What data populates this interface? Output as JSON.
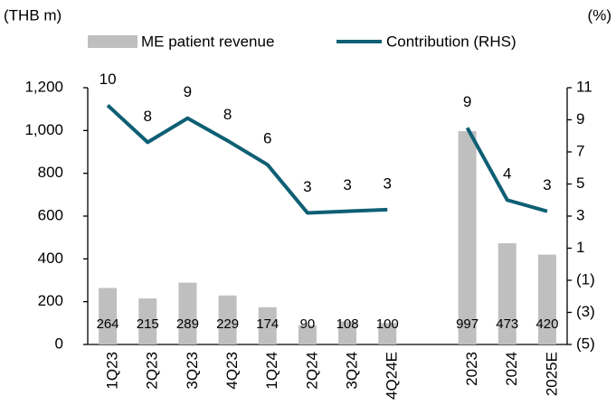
{
  "chart_data": {
    "type": "bar-line",
    "y_unit_label": "(THB m)",
    "y2_unit_label": "(%)",
    "categories": [
      "1Q23",
      "2Q23",
      "3Q23",
      "4Q23",
      "1Q24",
      "2Q24",
      "3Q24",
      "4Q24E",
      null,
      "2023",
      "2024",
      "2025E"
    ],
    "series": [
      {
        "name": "ME patient revenue",
        "type": "bar",
        "color": "#bfbfbf",
        "values": [
          264,
          215,
          289,
          229,
          174,
          90,
          108,
          100,
          null,
          997,
          473,
          420
        ]
      },
      {
        "name": "Contribution (RHS)",
        "type": "line",
        "axis": "y2",
        "color": "#0e5f74",
        "values": [
          9.9,
          7.6,
          9.1,
          7.7,
          6.2,
          3.2,
          3.3,
          3.4,
          null,
          8.5,
          4.0,
          3.3
        ],
        "value_labels": [
          "10",
          "8",
          "9",
          "8",
          "6",
          "3",
          "3",
          "3",
          null,
          "9",
          "4",
          "3"
        ]
      }
    ],
    "ylim": [
      0,
      1200
    ],
    "yticks": [
      0,
      200,
      400,
      600,
      800,
      {
        "value": 1000,
        "label": "1,000"
      },
      {
        "value": 1200,
        "label": "1,200"
      }
    ],
    "y2lim": [
      -5,
      11
    ],
    "y2ticks": [
      {
        "value": -5,
        "label": "(5)"
      },
      {
        "value": -3,
        "label": "(3)"
      },
      {
        "value": -1,
        "label": "(1)"
      },
      1,
      3,
      5,
      7,
      9,
      11
    ],
    "grid": false,
    "legend": "top"
  }
}
